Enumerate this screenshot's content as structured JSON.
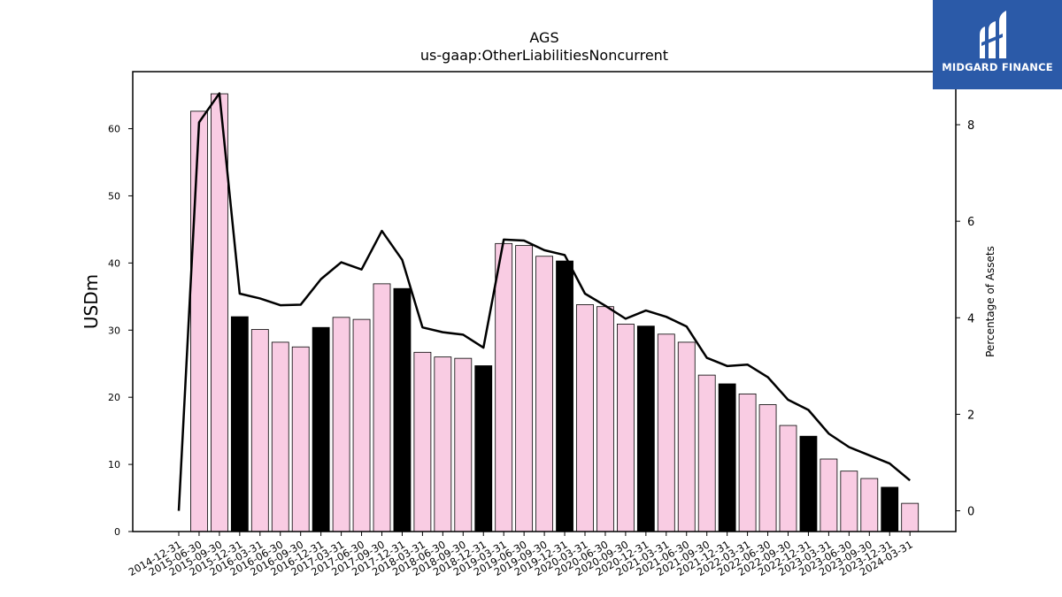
{
  "chart_data": {
    "type": "bar",
    "title": "AGS",
    "subtitle": "us-gaap:OtherLiabilitiesNoncurrent",
    "ylabel": "USDm",
    "y2label": "Percentage of Assets",
    "ylim": [
      0,
      68.5
    ],
    "y2lim": [
      -0.43,
      9.1
    ],
    "yticks": [
      0,
      10,
      20,
      30,
      40,
      50,
      60
    ],
    "y2ticks": [
      0,
      2,
      4,
      6,
      8
    ],
    "categories": [
      "2014-12-31",
      "2015-06-30",
      "2015-09-30",
      "2015-12-31",
      "2016-03-31",
      "2016-06-30",
      "2016-09-30",
      "2016-12-31",
      "2017-03-31",
      "2017-06-30",
      "2017-09-30",
      "2017-12-31",
      "2018-03-31",
      "2018-06-30",
      "2018-09-30",
      "2018-12-31",
      "2019-03-31",
      "2019-06-30",
      "2019-09-30",
      "2019-12-31",
      "2020-03-31",
      "2020-06-30",
      "2020-09-30",
      "2020-12-31",
      "2021-03-31",
      "2021-06-30",
      "2021-09-30",
      "2021-12-31",
      "2022-03-31",
      "2022-06-30",
      "2022-09-30",
      "2022-12-31",
      "2023-03-31",
      "2023-06-30",
      "2023-09-30",
      "2023-12-31",
      "2024-03-31"
    ],
    "series": [
      {
        "kind": "bar",
        "values": [
          0,
          62.6,
          65.2,
          32.0,
          30.1,
          28.2,
          27.5,
          30.4,
          31.9,
          31.6,
          36.9,
          36.2,
          26.7,
          26.0,
          25.8,
          24.7,
          42.9,
          42.6,
          41.0,
          40.3,
          33.8,
          33.5,
          30.9,
          30.6,
          29.4,
          28.2,
          23.3,
          22.0,
          20.5,
          18.9,
          15.8,
          14.2,
          10.8,
          9.0,
          7.9,
          6.6,
          4.2
        ],
        "highlight_indices": [
          3,
          7,
          11,
          15,
          19,
          23,
          27,
          31,
          35
        ],
        "color": "#f9cce3",
        "highlight_color": "#000000"
      },
      {
        "kind": "line",
        "axis": "right",
        "values": [
          0,
          8.05,
          8.65,
          4.5,
          4.4,
          4.26,
          4.27,
          4.8,
          5.15,
          5.0,
          5.8,
          5.2,
          3.8,
          3.7,
          3.65,
          3.38,
          5.62,
          5.6,
          5.4,
          5.3,
          4.5,
          4.25,
          3.98,
          4.15,
          4.02,
          3.82,
          3.17,
          3.0,
          3.03,
          2.77,
          2.3,
          2.09,
          1.6,
          1.32,
          1.15,
          0.98,
          0.63
        ],
        "color": "#000000"
      }
    ]
  },
  "logo": {
    "text": "MIDGARD FINANCE",
    "color": "#2b5aa8"
  }
}
